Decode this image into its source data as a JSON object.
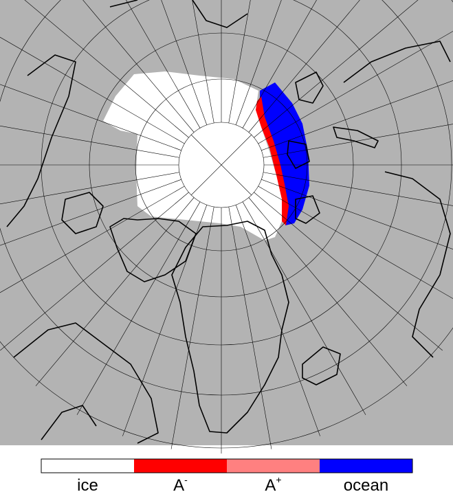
{
  "legend": {
    "items": [
      {
        "label": "ice",
        "color": "#ffffff"
      },
      {
        "label": "A",
        "superscript": "-",
        "color": "#ff0000"
      },
      {
        "label": "A",
        "superscript": "+",
        "color": "#ff8080"
      },
      {
        "label": "ocean",
        "color": "#0000ff"
      }
    ]
  }
}
